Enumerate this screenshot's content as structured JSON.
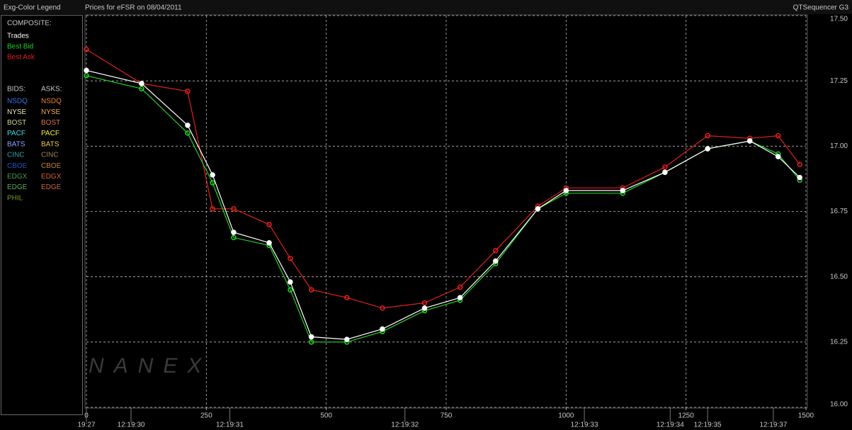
{
  "header": {
    "legend_title": "Exg-Color Legend",
    "app_name": "QTSequencer G3",
    "watermark": "NANEX"
  },
  "legend": {
    "composite_label": "COMPOSITE:",
    "bids_label": "BIDS:",
    "asks_label": "ASKS:",
    "exchanges": [
      {
        "name": "NSDQ",
        "bid_color": "#3f74e8",
        "ask_color": "#e8872c"
      },
      {
        "name": "NYSE",
        "bid_color": "#e6e6b0",
        "ask_color": "#f0a848"
      },
      {
        "name": "BOST",
        "bid_color": "#c8d890",
        "ask_color": "#e07050"
      },
      {
        "name": "PACF",
        "bid_color": "#40e0e8",
        "ask_color": "#f2f040"
      },
      {
        "name": "BATS",
        "bid_color": "#88a8ff",
        "ask_color": "#f0c860"
      },
      {
        "name": "CINC",
        "bid_color": "#3aa0a0",
        "ask_color": "#a08060"
      },
      {
        "name": "CBOE",
        "bid_color": "#2450c0",
        "ask_color": "#c08040"
      },
      {
        "name": "EDGX",
        "bid_color": "#40a048",
        "ask_color": "#d06030"
      },
      {
        "name": "EDGE",
        "bid_color": "#60a868",
        "ask_color": "#c86848"
      },
      {
        "name": "PHIL",
        "bid_color": "#70a030"
      }
    ]
  },
  "chart_data": {
    "type": "line",
    "title": "Prices for  eFSR  on  08/04/2011",
    "x": [
      0,
      115,
      211,
      263,
      307,
      381,
      425,
      469,
      543,
      617,
      705,
      779,
      853,
      941,
      1000,
      1118,
      1206,
      1295,
      1383,
      1442,
      1487
    ],
    "series": [
      {
        "name": "Trades",
        "color": "#ffffff",
        "values": [
          17.29,
          17.24,
          17.08,
          16.89,
          16.67,
          16.63,
          16.48,
          16.27,
          16.26,
          16.3,
          16.38,
          16.42,
          16.56,
          16.76,
          16.83,
          16.83,
          16.9,
          16.99,
          17.02,
          16.96,
          16.88
        ]
      },
      {
        "name": "Best Bid",
        "color": "#22d022",
        "values": [
          17.27,
          17.22,
          17.05,
          16.86,
          16.65,
          16.62,
          16.45,
          16.25,
          16.25,
          16.29,
          16.37,
          16.41,
          16.55,
          16.76,
          16.82,
          16.82,
          16.9,
          16.99,
          17.02,
          16.97,
          16.87
        ]
      },
      {
        "name": "Best Ask",
        "color": "#e02020",
        "values": [
          17.37,
          17.24,
          17.21,
          16.76,
          16.76,
          16.7,
          16.57,
          16.45,
          16.42,
          16.38,
          16.4,
          16.46,
          16.6,
          16.77,
          16.84,
          16.84,
          16.92,
          17.04,
          17.03,
          17.04,
          16.93
        ]
      }
    ],
    "xlim": [
      0,
      1500
    ],
    "xticks": [
      0,
      250,
      500,
      750,
      1000,
      1250,
      1500
    ],
    "ylim": [
      16,
      17.5
    ],
    "yticks": [
      {
        "value": 16,
        "label": "16.00"
      },
      16.25,
      {
        "value": 16.5,
        "label": "16.50"
      },
      16.75,
      {
        "value": 17,
        "label": "17.00"
      },
      17.25,
      {
        "value": 17.5,
        "label": "17.50"
      }
    ],
    "time_ticks": [
      {
        "value": 0,
        "label": "19:27"
      },
      {
        "value": 93,
        "label": "12:19:30"
      },
      {
        "value": 299,
        "label": "12:19:31"
      },
      {
        "value": 664,
        "label": "12:19:32"
      },
      {
        "value": 1038,
        "label": "12:19:33"
      },
      {
        "value": 1217,
        "label": "12:19:34"
      },
      {
        "value": 1295,
        "label": "12:19:35"
      },
      {
        "value": 1432,
        "label": "12:19:37"
      }
    ],
    "grid": true
  }
}
